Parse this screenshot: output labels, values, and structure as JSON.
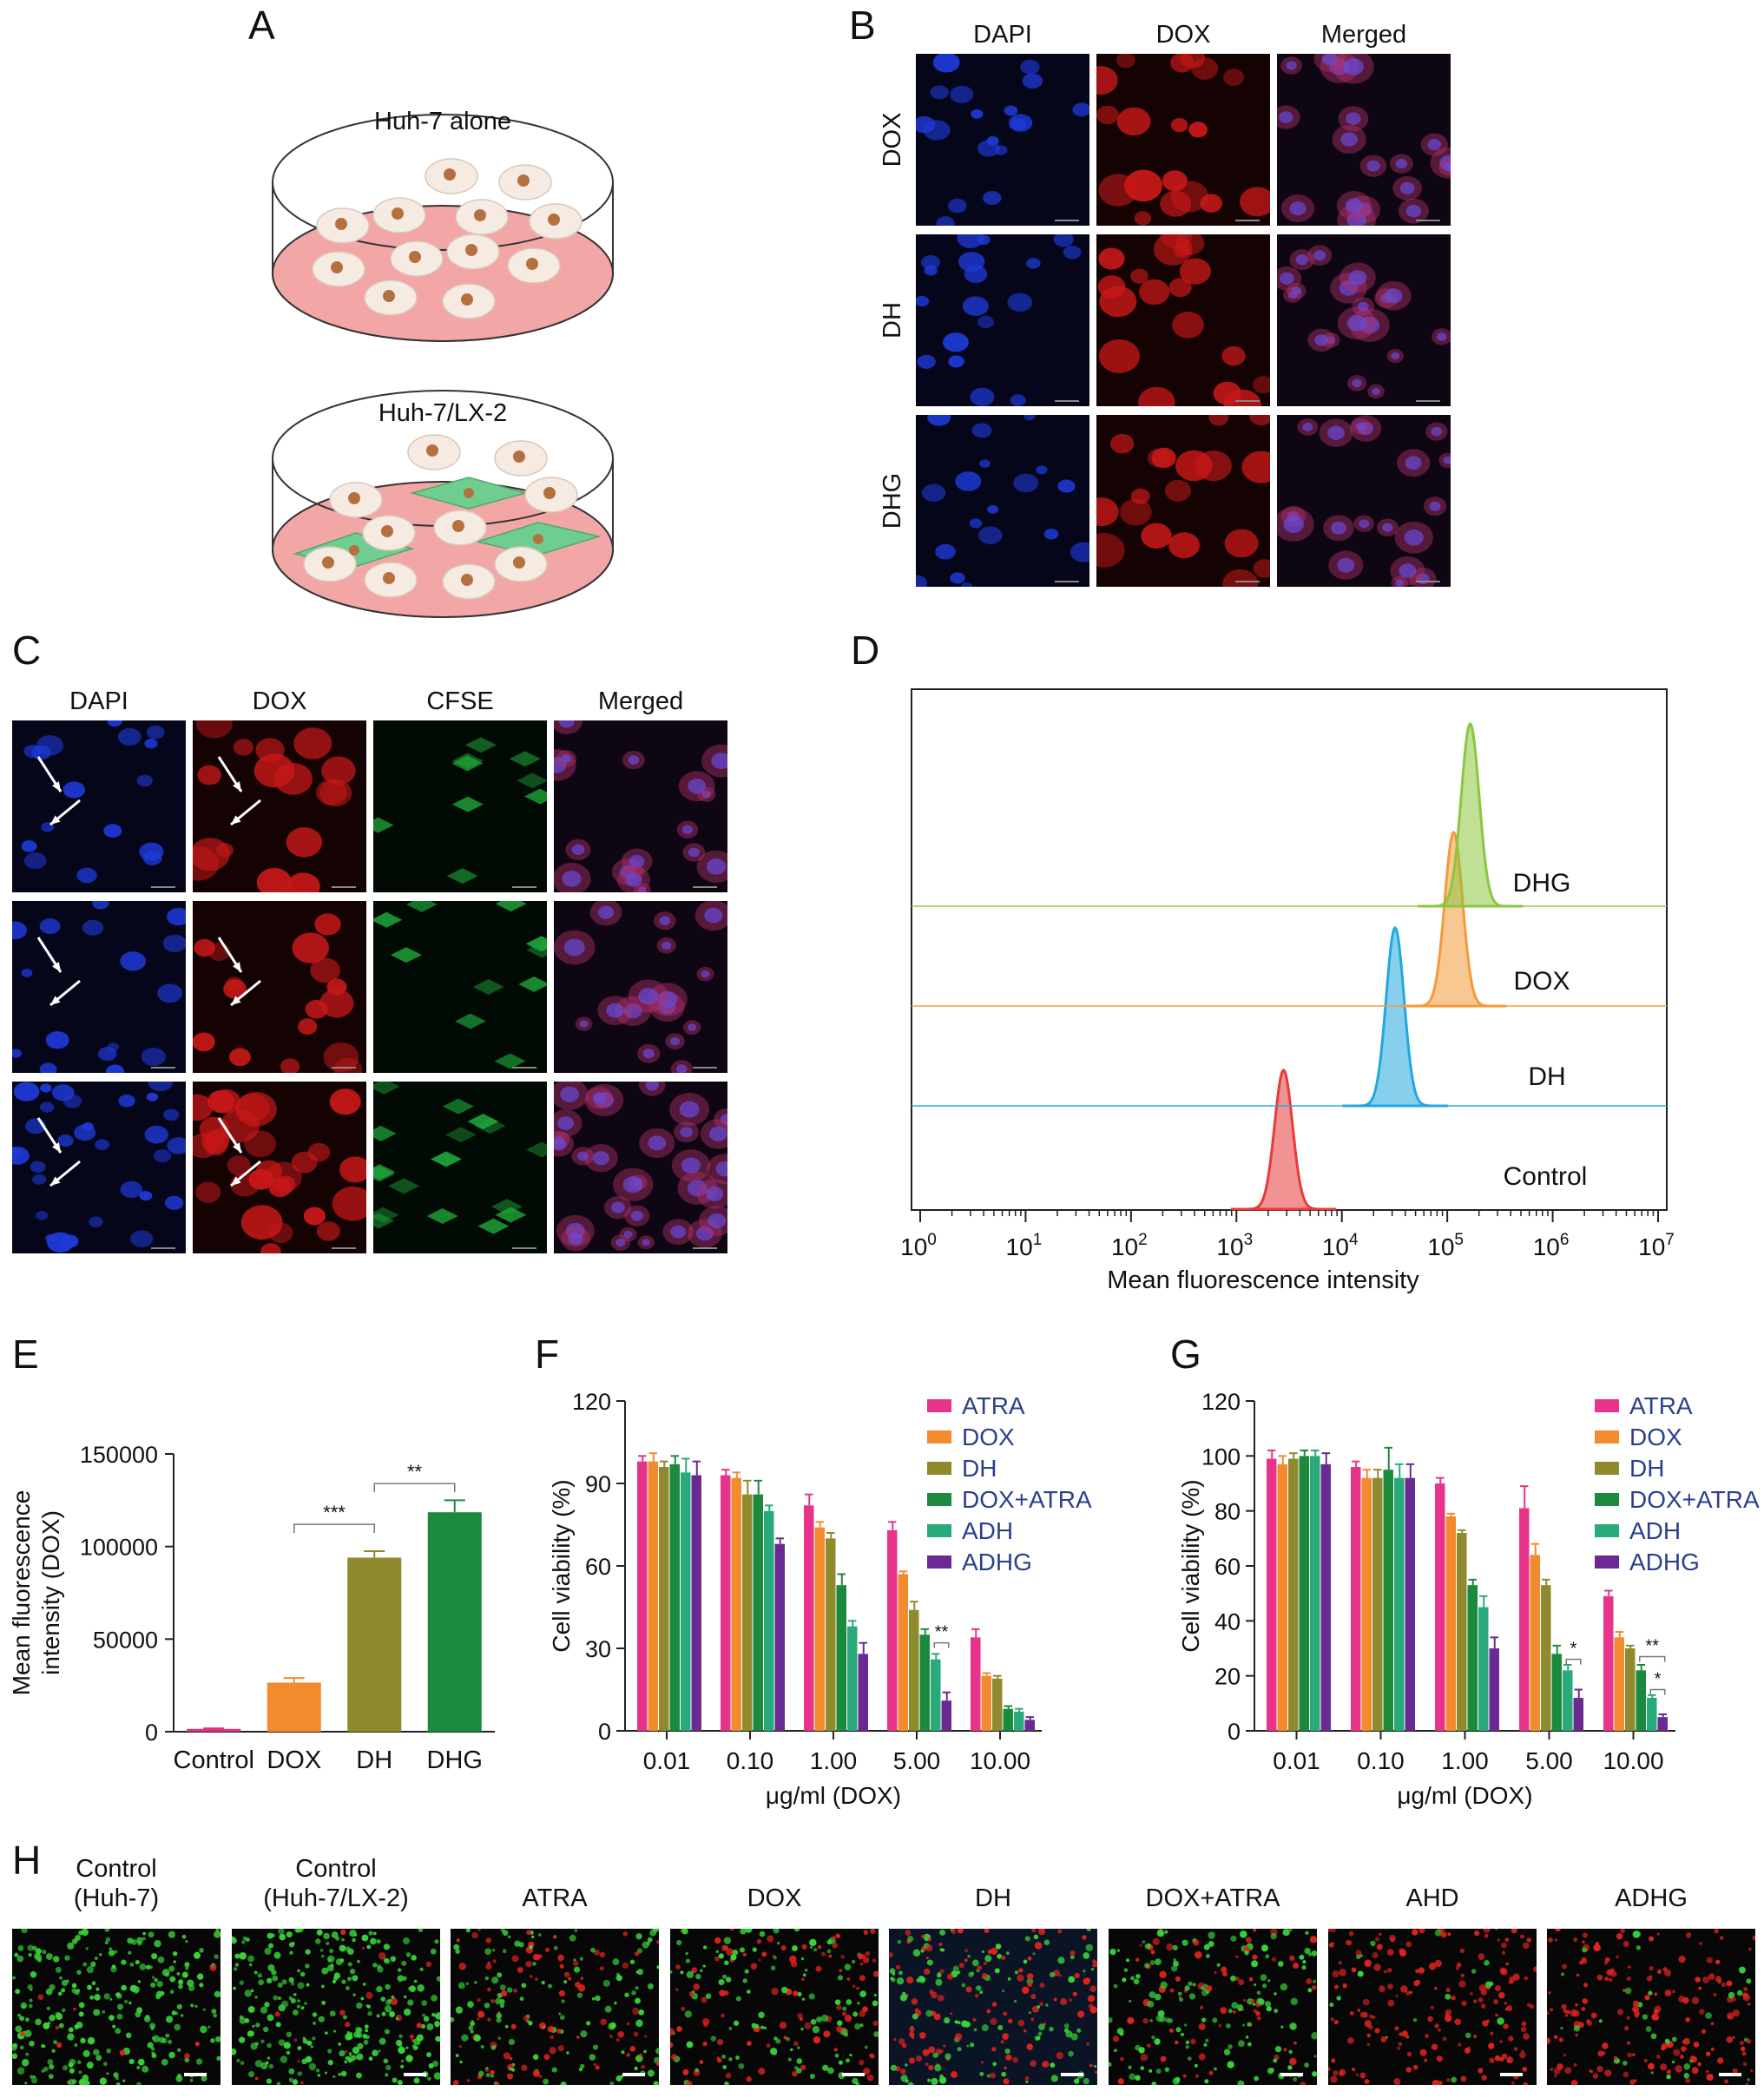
{
  "panel_labels": {
    "A": "A",
    "B": "B",
    "C": "C",
    "D": "D",
    "E": "E",
    "F": "F",
    "G": "G",
    "H": "H"
  },
  "panel_a": {
    "dish1_label": "Huh-7 alone",
    "dish2_label": "Huh-7/LX-2"
  },
  "panel_b": {
    "cols": [
      "DAPI",
      "DOX",
      "Merged"
    ],
    "rows": [
      "DOX",
      "DH",
      "DHG"
    ]
  },
  "panel_c": {
    "cols": [
      "DAPI",
      "DOX",
      "CFSE",
      "Merged"
    ]
  },
  "panel_h": {
    "labels": [
      "Control\n(Huh-7)",
      "Control\n(Huh-7/LX-2)",
      "ATRA",
      "DOX",
      "DH",
      "DOX+ATRA",
      "AHD",
      "ADHG"
    ]
  },
  "colors": {
    "ATRA": "#e8338b",
    "DOX": "#f28a2e",
    "DH": "#8e8a2d",
    "DOX_ATRA": "#1b8a3d",
    "ADH": "#2aaa7a",
    "ADHG": "#6a2a91",
    "Control_bar": "#e0307a",
    "DAPI": "#1e40d8",
    "DOXred": "#d01818",
    "CFSE": "#20b030"
  },
  "chart_data": [
    {
      "type": "histogram",
      "panel": "D",
      "xlabel": "Mean fluorescence intensity",
      "x_scale": "log",
      "xlim": [
        1,
        10000000
      ],
      "x_ticks": [
        "10",
        "10",
        "10",
        "10",
        "10",
        "10",
        "10",
        "10"
      ],
      "x_tick_exps": [
        "0",
        "1",
        "2",
        "3",
        "4",
        "5",
        "6",
        "7"
      ],
      "series": [
        {
          "name": "Control",
          "peak": 2800,
          "color": "#e83a3a"
        },
        {
          "name": "DOX",
          "peak": 32000,
          "color": "#22a8de"
        },
        {
          "name": "DH",
          "peak": 115000,
          "color": "#f39a3a"
        },
        {
          "name": "DHG",
          "peak": 165000,
          "color": "#8cc63f"
        }
      ]
    },
    {
      "type": "bar",
      "panel": "E",
      "ylabel_lines": [
        "Mean fluorescence",
        "intensity (DOX)"
      ],
      "categories": [
        "Control",
        "DOX",
        "DH",
        "DHG"
      ],
      "values": [
        1500,
        26500,
        94000,
        118500
      ],
      "errors": [
        300,
        2500,
        3500,
        6500
      ],
      "colors": [
        "#e0307a",
        "#f28a2e",
        "#8e8a2d",
        "#1b8a3d"
      ],
      "ylim": [
        0,
        150000
      ],
      "yticks": [
        "0",
        "50000",
        "100000",
        "150000"
      ],
      "significance": [
        {
          "from": "DOX",
          "to": "DH",
          "label": "***"
        },
        {
          "from": "DH",
          "to": "DHG",
          "label": "**"
        }
      ]
    },
    {
      "type": "bar",
      "panel": "F",
      "ylabel": "Cell viability (%)",
      "xlabel": "μg/ml (DOX)",
      "categories": [
        "0.01",
        "0.10",
        "1.00",
        "5.00",
        "10.00"
      ],
      "ylim": [
        0,
        120
      ],
      "yticks": [
        "0",
        "30",
        "60",
        "90",
        "120"
      ],
      "series": [
        {
          "name": "ATRA",
          "values": [
            98,
            93,
            82,
            73,
            34
          ],
          "errors": [
            2,
            2,
            4,
            3,
            3
          ]
        },
        {
          "name": "DOX",
          "values": [
            98,
            92,
            74,
            57,
            20
          ],
          "errors": [
            3,
            2,
            2,
            1,
            1
          ]
        },
        {
          "name": "DH",
          "values": [
            96,
            86,
            70,
            44,
            19
          ],
          "errors": [
            2,
            5,
            2,
            3,
            1
          ]
        },
        {
          "name": "DOX+ATRA",
          "values": [
            97,
            86,
            53,
            35,
            8
          ],
          "errors": [
            3,
            5,
            4,
            2,
            1
          ]
        },
        {
          "name": "ADH",
          "values": [
            94,
            80,
            38,
            26,
            7
          ],
          "errors": [
            5,
            2,
            2,
            2,
            1
          ]
        },
        {
          "name": "ADHG",
          "values": [
            93,
            68,
            28,
            11,
            4
          ],
          "errors": [
            5,
            2,
            4,
            3,
            1
          ]
        }
      ],
      "significance": [
        {
          "category": "5.00",
          "label": "**"
        }
      ]
    },
    {
      "type": "bar",
      "panel": "G",
      "ylabel": "Cell viability (%)",
      "xlabel": "μg/ml (DOX)",
      "categories": [
        "0.01",
        "0.10",
        "1.00",
        "5.00",
        "10.00"
      ],
      "ylim": [
        0,
        120
      ],
      "yticks": [
        "0",
        "20",
        "40",
        "60",
        "80",
        "100",
        "120"
      ],
      "series": [
        {
          "name": "ATRA",
          "values": [
            99,
            96,
            90,
            81,
            49
          ],
          "errors": [
            3,
            2,
            2,
            8,
            2
          ]
        },
        {
          "name": "DOX",
          "values": [
            97,
            92,
            78,
            64,
            34
          ],
          "errors": [
            3,
            3,
            1,
            4,
            2
          ]
        },
        {
          "name": "DH",
          "values": [
            99,
            92,
            72,
            53,
            30
          ],
          "errors": [
            2,
            3,
            1,
            2,
            1
          ]
        },
        {
          "name": "DOX+ATRA",
          "values": [
            100,
            95,
            53,
            28,
            22
          ],
          "errors": [
            2,
            8,
            2,
            3,
            2
          ]
        },
        {
          "name": "ADH",
          "values": [
            100,
            92,
            45,
            22,
            12
          ],
          "errors": [
            2,
            5,
            4,
            2,
            1
          ]
        },
        {
          "name": "ADHG",
          "values": [
            97,
            92,
            30,
            12,
            5
          ],
          "errors": [
            4,
            5,
            4,
            3,
            1
          ]
        }
      ],
      "significance": [
        {
          "category": "5.00",
          "label": "*"
        },
        {
          "category": "10.00",
          "label": "**"
        },
        {
          "category": "10.00",
          "label": "*"
        }
      ]
    }
  ]
}
